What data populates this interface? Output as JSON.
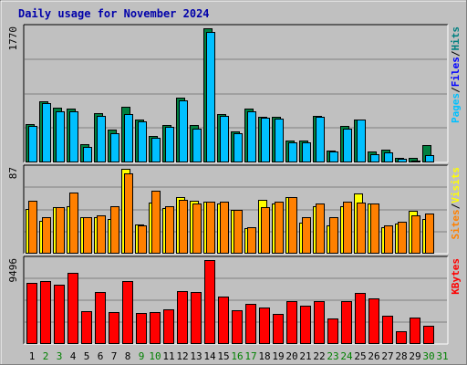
{
  "chart_data": {
    "type": "bar",
    "title": "Daily usage for November 2024",
    "days": [
      "1",
      "2",
      "3",
      "4",
      "5",
      "6",
      "7",
      "8",
      "9",
      "10",
      "11",
      "12",
      "13",
      "14",
      "15",
      "16",
      "17",
      "18",
      "19",
      "20",
      "21",
      "22",
      "23",
      "24",
      "25",
      "26",
      "27",
      "28",
      "29",
      "30",
      "31"
    ],
    "weekend_days": [
      "2",
      "3",
      "9",
      "10",
      "16",
      "17",
      "23",
      "24",
      "30",
      "31"
    ],
    "colors": {
      "pages": "#008040",
      "files": "#00c0ff",
      "hits": "#008080",
      "visits": "#ff8000",
      "sites": "#ffff00",
      "kbytes": "#ff0000",
      "weekday_label": "#000000",
      "weekend_label": "#008000",
      "title": "#0000aa"
    },
    "panels": [
      {
        "id": "hits",
        "max_label": "1770",
        "ymax": 1770,
        "legend": [
          {
            "text": "Pages",
            "color": "#00c0ff"
          },
          {
            "text": "Files",
            "color": "#0000ff"
          },
          {
            "text": "Hits",
            "color": "#008080"
          }
        ],
        "series": [
          {
            "name": "Hits",
            "color": "#008040",
            "values": [
              500,
              810,
              720,
              710,
              240,
              650,
              430,
              740,
              570,
              350,
              490,
              860,
              490,
              1770,
              640,
              410,
              710,
              600,
              600,
              290,
              290,
              620,
              160,
              480,
              570,
              140,
              170,
              60,
              60,
              230,
              0
            ]
          },
          {
            "name": "Files",
            "color": "#00c0ff",
            "values": [
              480,
              780,
              670,
              680,
              210,
              620,
              380,
              640,
              540,
              320,
              470,
              820,
              440,
              1720,
              620,
              380,
              670,
              590,
              580,
              260,
              270,
              600,
              140,
              440,
              570,
              110,
              130,
              50,
              30,
              100,
              0
            ]
          }
        ]
      },
      {
        "id": "visits",
        "max_label": "87",
        "ymax": 87,
        "legend": [
          {
            "text": "Sites",
            "color": "#ff8000"
          },
          {
            "text": "Visits",
            "color": "#ffff00"
          }
        ],
        "series": [
          {
            "name": "Sites",
            "color": "#ffff00",
            "values": [
              46,
              34,
              48,
              49,
              37,
              37,
              36,
              87,
              30,
              52,
              47,
              58,
              54,
              53,
              51,
              45,
              26,
              55,
              51,
              58,
              32,
              49,
              29,
              49,
              62,
              51,
              27,
              31,
              44,
              36,
              0
            ]
          },
          {
            "name": "Visits",
            "color": "#ff8000",
            "values": [
              54,
              37,
              48,
              63,
              37,
              39,
              49,
              82,
              29,
              65,
              49,
              55,
              51,
              53,
              53,
              45,
              27,
              48,
              53,
              58,
              37,
              51,
              37,
              53,
              52,
              51,
              29,
              33,
              39,
              41,
              0
            ]
          }
        ]
      },
      {
        "id": "kbytes",
        "max_label": "9496",
        "ymax": 9496,
        "legend": [
          {
            "text": "KBytes",
            "color": "#ff0000"
          }
        ],
        "series": [
          {
            "name": "KBytes",
            "color": "#ff0000",
            "values": [
              6900,
              7100,
              6700,
              8000,
              3700,
              5900,
              3600,
              7100,
              3500,
              3600,
              3900,
              6000,
              5900,
              9496,
              5400,
              3800,
              4500,
              4100,
              3400,
              4900,
              4300,
              4800,
              2900,
              4800,
              5800,
              5200,
              3200,
              1400,
              3000,
              2100,
              0
            ]
          }
        ]
      }
    ]
  }
}
